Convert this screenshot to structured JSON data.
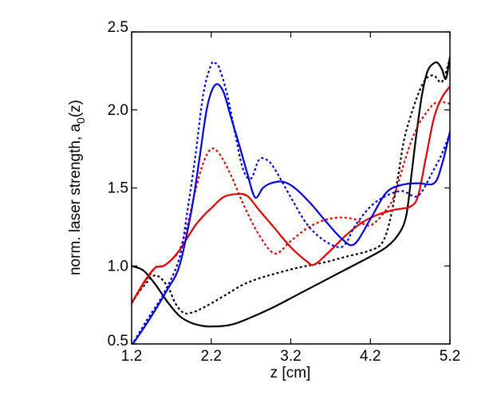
{
  "chart_data": {
    "type": "line",
    "title": "",
    "xlabel": "z [cm]",
    "ylabel_text": "norm. laser strength, a",
    "ylabel_subscript": "0",
    "ylabel_suffix": "(z)",
    "xlim": [
      1.2,
      5.2
    ],
    "ylim": [
      0.5,
      2.5
    ],
    "xticks": [
      1.2,
      2.2,
      3.2,
      4.2,
      5.2
    ],
    "xtick_labels": [
      "1.2",
      "2.2",
      "3.2",
      "4.2",
      "5.2"
    ],
    "yticks": [
      0.5,
      1.0,
      1.5,
      2.0,
      2.5
    ],
    "ytick_labels": [
      "0.5",
      "1.0",
      "1.5",
      "2.0",
      "2.5"
    ],
    "grid": false,
    "legend": "none",
    "series": [
      {
        "name": "black-solid",
        "color": "#000000",
        "style": "solid",
        "x": [
          1.2,
          1.35,
          1.5,
          1.65,
          1.8,
          1.95,
          2.1,
          2.2,
          2.35,
          2.5,
          2.7,
          3.0,
          3.3,
          3.6,
          3.9,
          4.2,
          4.4,
          4.55,
          4.65,
          4.72,
          4.78,
          4.85,
          4.92,
          5.0,
          5.05,
          5.1,
          5.15,
          5.2
        ],
        "values": [
          1.0,
          0.97,
          0.88,
          0.77,
          0.68,
          0.635,
          0.615,
          0.612,
          0.615,
          0.63,
          0.67,
          0.74,
          0.82,
          0.9,
          0.98,
          1.06,
          1.12,
          1.2,
          1.32,
          1.6,
          1.85,
          2.1,
          2.25,
          2.3,
          2.3,
          2.26,
          2.2,
          2.34
        ]
      },
      {
        "name": "black-dotted",
        "color": "#000000",
        "style": "dotted",
        "x": [
          1.2,
          1.35,
          1.5,
          1.65,
          1.75,
          1.85,
          1.95,
          2.05,
          2.2,
          2.4,
          2.6,
          2.8,
          3.0,
          3.3,
          3.6,
          3.9,
          4.2,
          4.35,
          4.45,
          4.55,
          4.62,
          4.7,
          4.8,
          4.9,
          5.0,
          5.1,
          5.2
        ],
        "values": [
          0.77,
          0.87,
          0.94,
          0.87,
          0.76,
          0.7,
          0.7,
          0.72,
          0.76,
          0.82,
          0.88,
          0.92,
          0.95,
          0.99,
          1.02,
          1.06,
          1.1,
          1.15,
          1.3,
          1.58,
          1.8,
          1.95,
          2.1,
          2.2,
          2.22,
          2.18,
          2.33
        ]
      },
      {
        "name": "red-solid",
        "color": "#e00000",
        "style": "solid",
        "x": [
          1.2,
          1.3,
          1.4,
          1.5,
          1.6,
          1.7,
          1.8,
          1.9,
          2.0,
          2.1,
          2.2,
          2.35,
          2.5,
          2.65,
          2.8,
          3.0,
          3.2,
          3.4,
          3.5,
          3.7,
          3.9,
          4.1,
          4.3,
          4.5,
          4.7,
          4.8,
          4.9,
          5.0,
          5.1,
          5.2
        ],
        "values": [
          0.76,
          0.85,
          0.93,
          0.99,
          1.0,
          1.04,
          1.1,
          1.18,
          1.26,
          1.32,
          1.37,
          1.44,
          1.46,
          1.45,
          1.36,
          1.24,
          1.12,
          1.03,
          1.01,
          1.1,
          1.2,
          1.28,
          1.33,
          1.36,
          1.38,
          1.45,
          1.7,
          1.95,
          2.08,
          2.15
        ]
      },
      {
        "name": "red-dotted",
        "color": "#e00000",
        "style": "dotted",
        "x": [
          1.2,
          1.35,
          1.5,
          1.6,
          1.7,
          1.8,
          1.9,
          2.0,
          2.1,
          2.2,
          2.3,
          2.45,
          2.6,
          2.8,
          3.0,
          3.2,
          3.4,
          3.6,
          3.8,
          4.0,
          4.2,
          4.4,
          4.5,
          4.6,
          4.7,
          4.8,
          4.9,
          5.0,
          5.1,
          5.2
        ],
        "values": [
          0.76,
          0.88,
          0.99,
          1.0,
          1.04,
          1.1,
          1.26,
          1.48,
          1.66,
          1.75,
          1.72,
          1.58,
          1.4,
          1.2,
          1.08,
          1.16,
          1.24,
          1.29,
          1.31,
          1.3,
          1.26,
          1.36,
          1.45,
          1.62,
          1.78,
          1.9,
          1.98,
          2.04,
          2.05,
          2.04
        ]
      },
      {
        "name": "blue-solid",
        "color": "#0000e0",
        "style": "solid",
        "x": [
          1.2,
          1.35,
          1.5,
          1.65,
          1.8,
          1.95,
          2.05,
          2.15,
          2.25,
          2.35,
          2.45,
          2.55,
          2.65,
          2.75,
          2.85,
          2.95,
          3.1,
          3.25,
          3.45,
          3.65,
          3.85,
          4.0,
          4.2,
          4.4,
          4.6,
          4.8,
          5.0,
          5.1,
          5.2
        ],
        "values": [
          0.49,
          0.6,
          0.72,
          0.85,
          1.0,
          1.35,
          1.68,
          2.02,
          2.16,
          2.12,
          1.95,
          1.78,
          1.6,
          1.44,
          1.5,
          1.53,
          1.54,
          1.5,
          1.4,
          1.28,
          1.17,
          1.14,
          1.3,
          1.47,
          1.52,
          1.53,
          1.53,
          1.65,
          1.86
        ]
      },
      {
        "name": "blue-dotted",
        "color": "#0000e0",
        "style": "dotted",
        "x": [
          1.2,
          1.4,
          1.6,
          1.8,
          1.9,
          2.0,
          2.1,
          2.2,
          2.25,
          2.3,
          2.4,
          2.5,
          2.6,
          2.7,
          2.8,
          2.9,
          3.0,
          3.2,
          3.4,
          3.6,
          3.8,
          3.9,
          4.0,
          4.2,
          4.4,
          4.6,
          4.8,
          5.0,
          5.1,
          5.2
        ],
        "values": [
          0.49,
          0.66,
          0.82,
          1.05,
          1.35,
          1.7,
          2.1,
          2.29,
          2.3,
          2.27,
          2.1,
          1.85,
          1.62,
          1.56,
          1.68,
          1.68,
          1.62,
          1.44,
          1.27,
          1.17,
          1.12,
          1.15,
          1.25,
          1.38,
          1.45,
          1.48,
          1.45,
          1.62,
          1.72,
          1.85
        ]
      }
    ]
  }
}
